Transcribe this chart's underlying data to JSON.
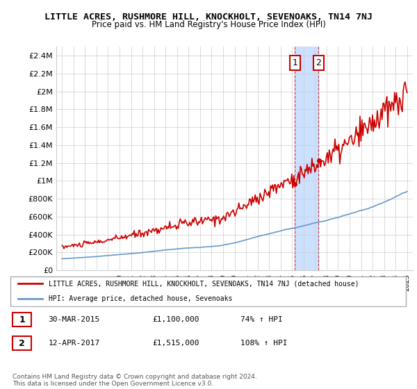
{
  "title": "LITTLE ACRES, RUSHMORE HILL, KNOCKHOLT, SEVENOAKS, TN14 7NJ",
  "subtitle": "Price paid vs. HM Land Registry's House Price Index (HPI)",
  "legend_line1": "LITTLE ACRES, RUSHMORE HILL, KNOCKHOLT, SEVENOAKS, TN14 7NJ (detached house)",
  "legend_line2": "HPI: Average price, detached house, Sevenoaks",
  "annotation1_date": "30-MAR-2015",
  "annotation1_price": "£1,100,000",
  "annotation1_hpi": "74% ↑ HPI",
  "annotation2_date": "12-APR-2017",
  "annotation2_price": "£1,515,000",
  "annotation2_hpi": "108% ↑ HPI",
  "copyright": "Contains HM Land Registry data © Crown copyright and database right 2024.\nThis data is licensed under the Open Government Licence v3.0.",
  "red_color": "#cc0000",
  "blue_color": "#6699cc",
  "highlight_color": "#cce0ff",
  "annotation_box_color": "#cc0000",
  "ylim": [
    0,
    2500000
  ],
  "yticks": [
    0,
    200000,
    400000,
    600000,
    800000,
    1000000,
    1200000,
    1400000,
    1600000,
    1800000,
    2000000,
    2200000,
    2400000
  ],
  "ytick_labels": [
    "£0",
    "£200K",
    "£400K",
    "£600K",
    "£800K",
    "£1M",
    "£1.2M",
    "£1.4M",
    "£1.6M",
    "£1.8M",
    "£2M",
    "£2.2M",
    "£2.4M"
  ],
  "sale1_year": 2015.25,
  "sale2_year": 2017.3
}
